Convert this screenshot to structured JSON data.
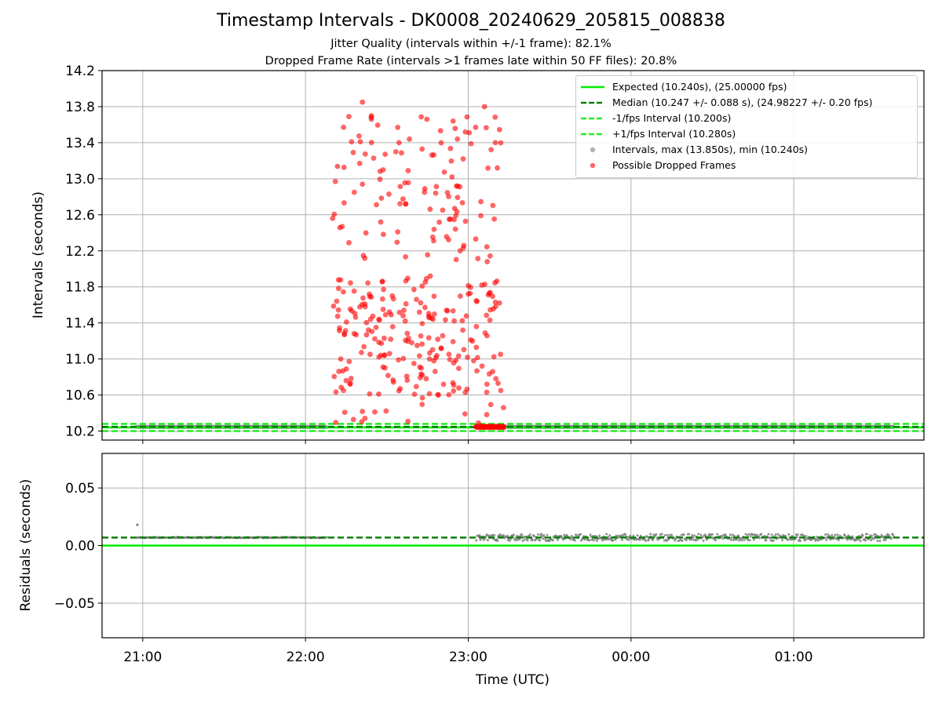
{
  "title": "Timestamp Intervals - DK0008_20240629_205815_008838",
  "subtitle_1": "Jitter Quality (intervals within +/-1 frame): 82.1%",
  "subtitle_2": "Dropped Frame Rate (intervals >1 frames late within 50 FF files): 20.8%",
  "colors": {
    "expected": "#00ee00",
    "median": "#008000",
    "interval_bounds": "#22ee22",
    "intervals": "#808080",
    "dropped": "#ff0000",
    "grid": "#b0b0b0"
  },
  "chart_data": [
    {
      "type": "scatter",
      "ylabel": "Intervals (seconds)",
      "ylim": [
        10.1,
        14.2
      ],
      "y_ticks": [
        "10.2",
        "10.6",
        "11.0",
        "11.4",
        "11.8",
        "12.2",
        "12.6",
        "13.0",
        "13.4",
        "13.8",
        "14.2"
      ],
      "xlim": [
        "20:45",
        "01:48"
      ],
      "x_ticks": [
        "21:00",
        "22:00",
        "23:00",
        "00:00",
        "01:00"
      ],
      "grid": true,
      "legend_position": "top-right",
      "series": [
        {
          "name": "Expected (10.240s), (25.00000 fps)",
          "kind": "hline",
          "y": 10.24,
          "style": "solid"
        },
        {
          "name": "Median (10.247 +/- 0.088 s), (24.98227 +/- 0.20 fps)",
          "kind": "hline",
          "y": 10.247,
          "style": "dashed"
        },
        {
          "name": "-1/fps Interval (10.200s)",
          "kind": "hline",
          "y": 10.2,
          "style": "dashed"
        },
        {
          "name": "+1/fps Interval (10.280s)",
          "kind": "hline",
          "y": 10.28,
          "style": "dashed"
        },
        {
          "name": "Intervals, max (13.850s), min (10.240s)",
          "kind": "scatter",
          "segments": [
            {
              "x_start": "20:58",
              "x_end": "22:08",
              "y": 10.247
            },
            {
              "x_start": "23:03",
              "x_end": "01:37",
              "y": 10.247
            }
          ]
        },
        {
          "name": "Possible Dropped Frames",
          "kind": "scatter",
          "x_range": [
            "22:08",
            "23:13"
          ],
          "y_range": [
            10.24,
            13.85
          ],
          "sample_points": [
            [
              "22:10",
              12.56
            ],
            [
              "22:11",
              12.97
            ],
            [
              "22:13",
              11.0
            ],
            [
              "22:14",
              10.65
            ],
            [
              "22:15",
              10.76
            ],
            [
              "22:16",
              12.29
            ],
            [
              "22:16",
              13.69
            ],
            [
              "22:17",
              13.41
            ],
            [
              "22:18",
              12.85
            ],
            [
              "22:20",
              13.17
            ],
            [
              "22:21",
              13.85
            ],
            [
              "22:21",
              12.94
            ],
            [
              "22:22",
              11.58
            ],
            [
              "22:24",
              11.44
            ],
            [
              "22:26",
              11.35
            ],
            [
              "22:27",
              10.61
            ],
            [
              "22:29",
              11.23
            ],
            [
              "22:31",
              11.06
            ],
            [
              "22:32",
              11.7
            ],
            [
              "22:34",
              12.41
            ],
            [
              "22:34",
              13.57
            ],
            [
              "22:36",
              11.48
            ],
            [
              "22:38",
              11.23
            ],
            [
              "22:40",
              10.95
            ],
            [
              "22:40",
              11.77
            ],
            [
              "22:42",
              11.52
            ],
            [
              "22:43",
              13.33
            ],
            [
              "22:44",
              12.89
            ],
            [
              "22:46",
              11.92
            ],
            [
              "22:47",
              11.44
            ],
            [
              "22:48",
              12.84
            ],
            [
              "22:49",
              10.6
            ],
            [
              "22:50",
              11.12
            ],
            [
              "22:52",
              11.54
            ],
            [
              "22:53",
              12.55
            ],
            [
              "22:54",
              13.02
            ],
            [
              "22:55",
              12.67
            ],
            [
              "22:56",
              13.44
            ],
            [
              "22:57",
              12.2
            ],
            [
              "22:58",
              11.32
            ],
            [
              "23:00",
              11.72
            ],
            [
              "23:02",
              10.98
            ],
            [
              "23:03",
              11.36
            ],
            [
              "23:05",
              11.82
            ],
            [
              "23:06",
              13.8
            ],
            [
              "23:07",
              12.08
            ],
            [
              "23:08",
              11.43
            ],
            [
              "23:09",
              10.86
            ],
            [
              "23:10",
              11.63
            ],
            [
              "23:10",
              13.4
            ],
            [
              "23:11",
              10.73
            ],
            [
              "23:12",
              10.65
            ],
            [
              "23:13",
              10.46
            ],
            [
              "23:13",
              10.24
            ]
          ]
        }
      ]
    },
    {
      "type": "scatter",
      "ylabel": "Residuals (seconds)",
      "xlabel": "Time (UTC)",
      "ylim": [
        -0.08,
        0.08
      ],
      "y_ticks": [
        "0.05",
        "0.00",
        "−0.05"
      ],
      "xlim": [
        "20:45",
        "01:48"
      ],
      "x_ticks": [
        "21:00",
        "22:00",
        "23:00",
        "00:00",
        "01:00"
      ],
      "grid": true,
      "series": [
        {
          "kind": "hline",
          "y": 0.0,
          "style": "solid",
          "color_key": "expected"
        },
        {
          "kind": "hline",
          "y": 0.007,
          "style": "dashed",
          "color_key": "median"
        },
        {
          "kind": "scatter",
          "color_key": "intervals",
          "segments": [
            {
              "x_start": "20:58",
              "x_end": "22:08",
              "y": 0.007
            },
            {
              "x_start": "23:03",
              "x_end": "01:37",
              "y": 0.007
            }
          ],
          "outliers": [
            [
              "20:58",
              0.018
            ]
          ]
        }
      ]
    }
  ]
}
